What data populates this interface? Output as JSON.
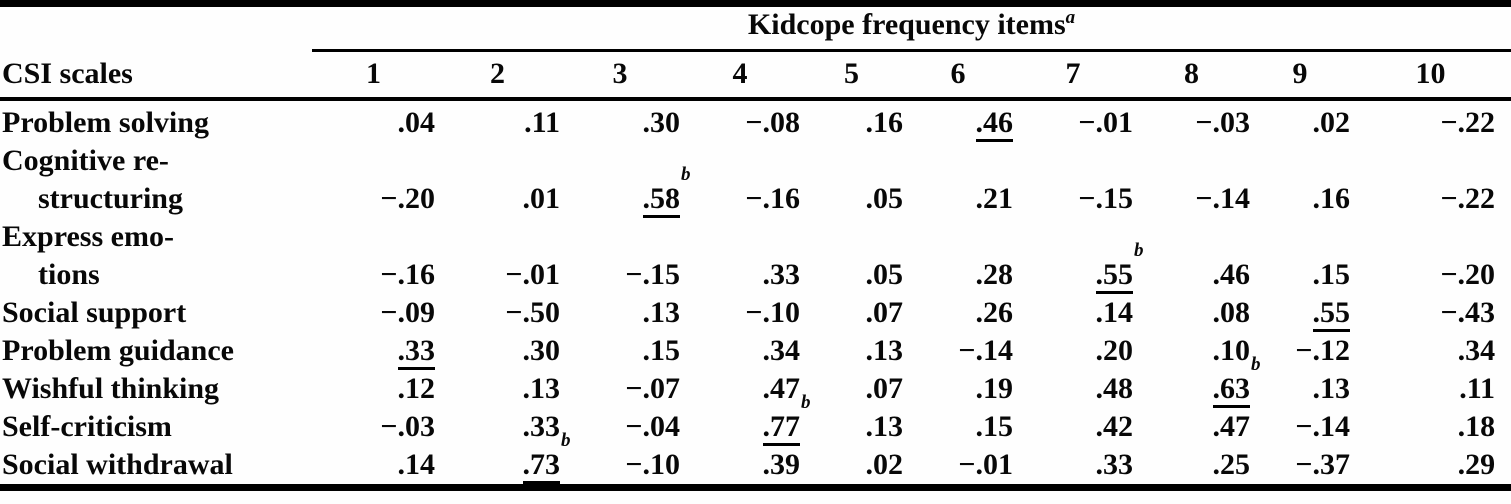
{
  "table": {
    "title": "Kidcope frequency items",
    "title_sup": "a",
    "stub_header": "CSI scales",
    "columns": [
      "1",
      "2",
      "3",
      "4",
      "5",
      "6",
      "7",
      "8",
      "9",
      "10"
    ],
    "rows": [
      {
        "label": "Problem solving",
        "lines": [
          "Problem solving"
        ],
        "cells": [
          {
            "v": ".04"
          },
          {
            "v": ".11"
          },
          {
            "v": ".30"
          },
          {
            "v": "−.08"
          },
          {
            "v": ".16"
          },
          {
            "v": ".46",
            "u": true
          },
          {
            "v": "−.01"
          },
          {
            "v": "−.03"
          },
          {
            "v": ".02"
          },
          {
            "v": "−.22"
          }
        ]
      },
      {
        "label": "Cognitive restructuring",
        "lines": [
          "Cognitive re-",
          "structuring"
        ],
        "cells": [
          {
            "v": "−.20"
          },
          {
            "v": ".01"
          },
          {
            "v": ".58",
            "u": true,
            "sup": "b"
          },
          {
            "v": "−.16"
          },
          {
            "v": ".05"
          },
          {
            "v": ".21"
          },
          {
            "v": "−.15"
          },
          {
            "v": "−.14"
          },
          {
            "v": ".16"
          },
          {
            "v": "−.22"
          }
        ]
      },
      {
        "label": "Express emotions",
        "lines": [
          "Express emo-",
          "tions"
        ],
        "cells": [
          {
            "v": "−.16"
          },
          {
            "v": "−.01"
          },
          {
            "v": "−.15"
          },
          {
            "v": ".33"
          },
          {
            "v": ".05"
          },
          {
            "v": ".28"
          },
          {
            "v": ".55",
            "u": true,
            "sup": "b"
          },
          {
            "v": ".46"
          },
          {
            "v": ".15"
          },
          {
            "v": "−.20"
          }
        ]
      },
      {
        "label": "Social support",
        "lines": [
          "Social support"
        ],
        "cells": [
          {
            "v": "−.09"
          },
          {
            "v": "−.50"
          },
          {
            "v": ".13"
          },
          {
            "v": "−.10"
          },
          {
            "v": ".07"
          },
          {
            "v": ".26"
          },
          {
            "v": ".14"
          },
          {
            "v": ".08"
          },
          {
            "v": ".55",
            "u": true
          },
          {
            "v": "−.43"
          }
        ]
      },
      {
        "label": "Problem guidance",
        "lines": [
          "Problem guidance"
        ],
        "cells": [
          {
            "v": ".33",
            "u": true
          },
          {
            "v": ".30"
          },
          {
            "v": ".15"
          },
          {
            "v": ".34"
          },
          {
            "v": ".13"
          },
          {
            "v": "−.14"
          },
          {
            "v": ".20"
          },
          {
            "v": ".10"
          },
          {
            "v": "−.12"
          },
          {
            "v": ".34"
          }
        ]
      },
      {
        "label": "Wishful thinking",
        "lines": [
          "Wishful thinking"
        ],
        "cells": [
          {
            "v": ".12"
          },
          {
            "v": ".13"
          },
          {
            "v": "−.07"
          },
          {
            "v": ".47"
          },
          {
            "v": ".07"
          },
          {
            "v": ".19"
          },
          {
            "v": ".48"
          },
          {
            "v": ".63",
            "u": true,
            "sup": "b"
          },
          {
            "v": ".13"
          },
          {
            "v": ".11"
          }
        ]
      },
      {
        "label": "Self-criticism",
        "lines": [
          "Self-criticism"
        ],
        "cells": [
          {
            "v": "−.03"
          },
          {
            "v": ".33"
          },
          {
            "v": "−.04"
          },
          {
            "v": ".77",
            "u": true,
            "sup": "b"
          },
          {
            "v": ".13"
          },
          {
            "v": ".15"
          },
          {
            "v": ".42"
          },
          {
            "v": ".47"
          },
          {
            "v": "−.14"
          },
          {
            "v": ".18"
          }
        ]
      },
      {
        "label": "Social withdrawal",
        "lines": [
          "Social withdrawal"
        ],
        "cells": [
          {
            "v": ".14"
          },
          {
            "v": ".73",
            "u": true,
            "sup": "b"
          },
          {
            "v": "−.10"
          },
          {
            "v": ".39"
          },
          {
            "v": ".02"
          },
          {
            "v": "−.01"
          },
          {
            "v": ".33"
          },
          {
            "v": ".25"
          },
          {
            "v": "−.37"
          },
          {
            "v": ".29"
          }
        ]
      }
    ]
  }
}
